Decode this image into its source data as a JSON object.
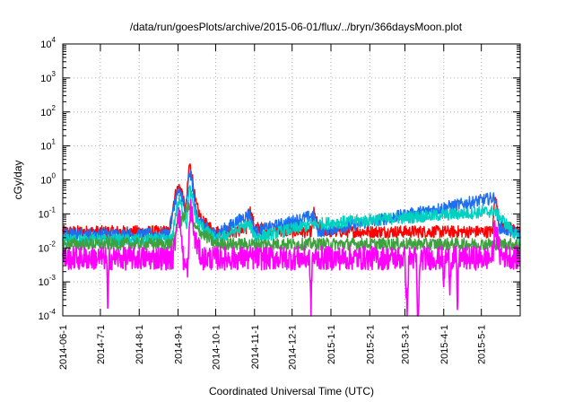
{
  "chart_data": {
    "type": "line",
    "title": "/data/run/goesPlots/archive/2015-06-01/flux/../bryn/366daysMoon.plot",
    "xlabel": "Coordinated Universal Time (UTC)",
    "ylabel": "cGy/day",
    "y_scale": "log",
    "ylim": [
      0.0001,
      10000
    ],
    "xlim": [
      "2014-06-01",
      "2015-06-01"
    ],
    "grid": true,
    "y_ticks": [
      {
        "base": "10",
        "exp": "-4",
        "value": 0.0001
      },
      {
        "base": "10",
        "exp": "-3",
        "value": 0.001
      },
      {
        "base": "10",
        "exp": "-2",
        "value": 0.01
      },
      {
        "base": "10",
        "exp": "-1",
        "value": 0.1
      },
      {
        "base": "10",
        "exp": "0",
        "value": 1
      },
      {
        "base": "10",
        "exp": "1",
        "value": 10
      },
      {
        "base": "10",
        "exp": "2",
        "value": 100
      },
      {
        "base": "10",
        "exp": "3",
        "value": 1000
      },
      {
        "base": "10",
        "exp": "4",
        "value": 10000
      }
    ],
    "x_ticks": [
      "2014-06-1",
      "2014-7-1",
      "2014-8-1",
      "2014-9-1",
      "2014-10-1",
      "2014-11-1",
      "2014-12-1",
      "2015-1-1",
      "2015-2-1",
      "2015-3-1",
      "2015-4-1",
      "2015-5-1"
    ],
    "series": [
      {
        "color": "#ff0000",
        "baseline": 0.026,
        "points": [
          [
            "2014-06-01",
            0.03
          ],
          [
            "2014-07-01",
            0.03
          ],
          [
            "2014-08-01",
            0.03
          ],
          [
            "2014-08-25",
            0.03
          ],
          [
            "2014-08-29",
            0.3
          ],
          [
            "2014-09-01",
            0.6
          ],
          [
            "2014-09-04",
            0.5
          ],
          [
            "2014-09-07",
            0.1
          ],
          [
            "2014-09-10",
            3.0
          ],
          [
            "2014-09-12",
            1.5
          ],
          [
            "2014-09-15",
            0.2
          ],
          [
            "2014-09-20",
            0.06
          ],
          [
            "2014-09-27",
            0.04
          ],
          [
            "2014-10-01",
            0.03
          ],
          [
            "2014-10-25",
            0.03
          ],
          [
            "2014-10-28",
            0.15
          ],
          [
            "2014-11-01",
            0.04
          ],
          [
            "2014-12-01",
            0.03
          ],
          [
            "2014-12-17",
            0.03
          ],
          [
            "2014-12-18",
            0.12
          ],
          [
            "2014-12-22",
            0.04
          ],
          [
            "2015-01-01",
            0.03
          ],
          [
            "2015-03-01",
            0.03
          ],
          [
            "2015-05-01",
            0.03
          ],
          [
            "2015-05-10",
            0.03
          ],
          [
            "2015-05-12",
            0.45
          ],
          [
            "2015-05-15",
            0.05
          ],
          [
            "2015-06-01",
            0.03
          ]
        ]
      },
      {
        "color": "#1e6ff0",
        "baseline": 0.022,
        "points": [
          [
            "2014-06-01",
            0.025
          ],
          [
            "2014-08-25",
            0.025
          ],
          [
            "2014-08-29",
            0.2
          ],
          [
            "2014-09-01",
            0.45
          ],
          [
            "2014-09-04",
            0.35
          ],
          [
            "2014-09-07",
            0.08
          ],
          [
            "2014-09-10",
            1.8
          ],
          [
            "2014-09-12",
            1.0
          ],
          [
            "2014-09-15",
            0.12
          ],
          [
            "2014-09-20",
            0.05
          ],
          [
            "2014-10-01",
            0.025
          ],
          [
            "2014-10-28",
            0.1
          ],
          [
            "2014-11-01",
            0.03
          ],
          [
            "2014-12-18",
            0.09
          ],
          [
            "2014-12-22",
            0.03
          ],
          [
            "2015-05-12",
            0.3
          ],
          [
            "2015-05-15",
            0.04
          ],
          [
            "2015-06-01",
            0.025
          ]
        ]
      },
      {
        "color": "#00d0c0",
        "baseline": 0.016,
        "points": [
          [
            "2014-06-01",
            0.017
          ],
          [
            "2014-08-27",
            0.017
          ],
          [
            "2014-08-30",
            0.1
          ],
          [
            "2014-09-02",
            0.25
          ],
          [
            "2014-09-05",
            0.12
          ],
          [
            "2014-09-08",
            0.05
          ],
          [
            "2014-09-10",
            0.6
          ],
          [
            "2014-09-12",
            0.3
          ],
          [
            "2014-09-16",
            0.06
          ],
          [
            "2014-10-01",
            0.017
          ],
          [
            "2014-10-28",
            0.05
          ],
          [
            "2014-11-02",
            0.02
          ],
          [
            "2014-12-18",
            0.05
          ],
          [
            "2015-05-12",
            0.12
          ],
          [
            "2015-06-01",
            0.017
          ]
        ]
      },
      {
        "color": "#40a040",
        "baseline": 0.013,
        "points": [
          [
            "2014-06-01",
            0.013
          ],
          [
            "2014-08-28",
            0.013
          ],
          [
            "2014-09-01",
            0.08
          ],
          [
            "2014-09-04",
            0.06
          ],
          [
            "2014-09-10",
            0.2
          ],
          [
            "2014-09-14",
            0.04
          ],
          [
            "2014-10-01",
            0.013
          ],
          [
            "2015-06-01",
            0.013
          ]
        ]
      },
      {
        "color": "#ff00ff",
        "baseline": 0.004,
        "points": [
          [
            "2014-06-01",
            0.005
          ],
          [
            "2014-07-06",
            0.005
          ],
          [
            "2014-07-07",
            0.0001
          ],
          [
            "2014-07-08",
            0.005
          ],
          [
            "2014-08-28",
            0.005
          ],
          [
            "2014-09-01",
            0.12
          ],
          [
            "2014-09-03",
            0.05
          ],
          [
            "2014-09-05",
            0.005
          ],
          [
            "2014-09-07",
            0.0025
          ],
          [
            "2014-09-09",
            0.003
          ],
          [
            "2014-09-11",
            0.2
          ],
          [
            "2014-09-14",
            0.02
          ],
          [
            "2014-09-20",
            0.005
          ],
          [
            "2014-10-01",
            0.005
          ],
          [
            "2014-11-20",
            0.005
          ],
          [
            "2014-12-15",
            0.005
          ],
          [
            "2014-12-16",
            0.0001
          ],
          [
            "2014-12-17",
            0.005
          ],
          [
            "2015-03-01",
            0.005
          ],
          [
            "2015-03-03",
            0.0001
          ],
          [
            "2015-03-04",
            0.005
          ],
          [
            "2015-03-10",
            0.005
          ],
          [
            "2015-03-11",
            0.0001
          ],
          [
            "2015-03-12",
            0.0001
          ],
          [
            "2015-03-13",
            0.005
          ],
          [
            "2015-03-31",
            0.005
          ],
          [
            "2015-04-01",
            0.0006
          ],
          [
            "2015-04-02",
            0.005
          ],
          [
            "2015-04-05",
            0.005
          ],
          [
            "2015-04-06",
            0.0008
          ],
          [
            "2015-04-07",
            0.005
          ],
          [
            "2015-04-11",
            0.005
          ],
          [
            "2015-04-12",
            0.00015
          ],
          [
            "2015-04-13",
            0.005
          ],
          [
            "2015-05-10",
            0.005
          ],
          [
            "2015-05-12",
            0.05
          ],
          [
            "2015-05-16",
            0.006
          ],
          [
            "2015-06-01",
            0.005
          ]
        ]
      }
    ]
  }
}
